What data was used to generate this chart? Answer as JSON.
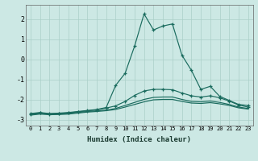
{
  "xlabel": "Humidex (Indice chaleur)",
  "xlim": [
    -0.5,
    23.5
  ],
  "ylim": [
    -3.3,
    2.7
  ],
  "yticks": [
    -3,
    -2,
    -1,
    0,
    1,
    2
  ],
  "xticks": [
    0,
    1,
    2,
    3,
    4,
    5,
    6,
    7,
    8,
    9,
    10,
    11,
    12,
    13,
    14,
    15,
    16,
    17,
    18,
    19,
    20,
    21,
    22,
    23
  ],
  "bg_color": "#cce8e4",
  "grid_color": "#aacfc8",
  "line_color": "#1a6b5e",
  "series": [
    {
      "x": [
        0,
        1,
        2,
        3,
        4,
        5,
        6,
        7,
        8,
        9,
        10,
        11,
        12,
        13,
        14,
        15,
        16,
        17,
        18,
        19,
        20,
        21,
        22,
        23
      ],
      "y": [
        -2.7,
        -2.65,
        -2.7,
        -2.68,
        -2.65,
        -2.6,
        -2.55,
        -2.5,
        -2.4,
        -1.3,
        -0.7,
        0.65,
        2.25,
        1.45,
        1.65,
        1.75,
        0.2,
        -0.55,
        -1.5,
        -1.35,
        -1.85,
        -2.05,
        -2.25,
        -2.3
      ],
      "marker": true
    },
    {
      "x": [
        0,
        1,
        2,
        3,
        4,
        5,
        6,
        7,
        8,
        9,
        10,
        11,
        12,
        13,
        14,
        15,
        16,
        17,
        18,
        19,
        20,
        21,
        22,
        23
      ],
      "y": [
        -2.72,
        -2.67,
        -2.72,
        -2.7,
        -2.67,
        -2.62,
        -2.57,
        -2.52,
        -2.43,
        -2.32,
        -2.1,
        -1.8,
        -1.58,
        -1.5,
        -1.5,
        -1.52,
        -1.68,
        -1.82,
        -1.88,
        -1.82,
        -1.92,
        -2.08,
        -2.28,
        -2.38
      ],
      "marker": true
    },
    {
      "x": [
        0,
        1,
        2,
        3,
        4,
        5,
        6,
        7,
        8,
        9,
        10,
        11,
        12,
        13,
        14,
        15,
        16,
        17,
        18,
        19,
        20,
        21,
        22,
        23
      ],
      "y": [
        -2.75,
        -2.7,
        -2.73,
        -2.72,
        -2.7,
        -2.65,
        -2.6,
        -2.57,
        -2.53,
        -2.45,
        -2.3,
        -2.15,
        -2.0,
        -1.9,
        -1.88,
        -1.88,
        -2.0,
        -2.1,
        -2.12,
        -2.08,
        -2.15,
        -2.25,
        -2.38,
        -2.45
      ],
      "marker": false
    },
    {
      "x": [
        0,
        1,
        2,
        3,
        4,
        5,
        6,
        7,
        8,
        9,
        10,
        11,
        12,
        13,
        14,
        15,
        16,
        17,
        18,
        19,
        20,
        21,
        22,
        23
      ],
      "y": [
        -2.78,
        -2.73,
        -2.76,
        -2.75,
        -2.73,
        -2.68,
        -2.63,
        -2.6,
        -2.56,
        -2.5,
        -2.38,
        -2.25,
        -2.12,
        -2.02,
        -2.0,
        -2.0,
        -2.1,
        -2.18,
        -2.2,
        -2.16,
        -2.22,
        -2.3,
        -2.42,
        -2.48
      ],
      "marker": false
    }
  ]
}
